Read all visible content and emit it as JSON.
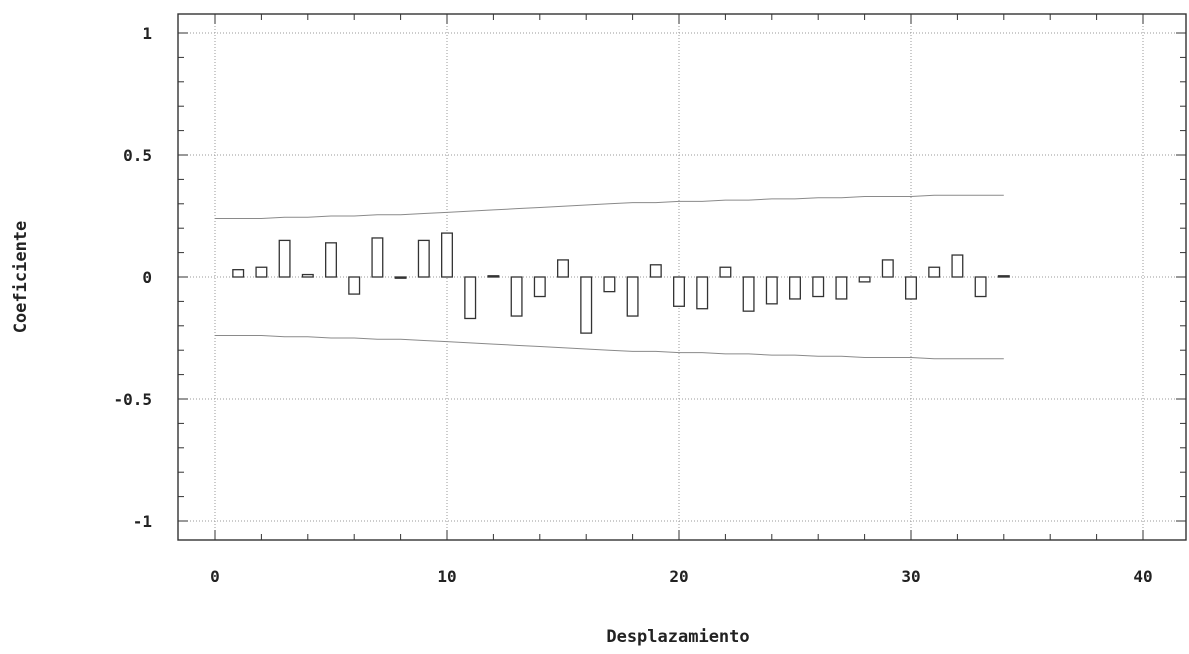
{
  "chart_data": {
    "type": "bar",
    "xlabel": "Desplazamiento",
    "ylabel": "Coeficiente",
    "xlim": [
      0,
      40
    ],
    "ylim": [
      -1,
      1
    ],
    "xticks": [
      0,
      10,
      20,
      30,
      40
    ],
    "yticks": [
      1,
      0.5,
      0,
      -0.5,
      -1
    ],
    "ytick_labels": [
      "1",
      "0.5",
      "0",
      "-0.5",
      "-1"
    ],
    "grid": true,
    "x": [
      1,
      2,
      3,
      4,
      5,
      6,
      7,
      8,
      9,
      10,
      11,
      12,
      13,
      14,
      15,
      16,
      17,
      18,
      19,
      20,
      21,
      22,
      23,
      24,
      25,
      26,
      27,
      28,
      29,
      30,
      31,
      32,
      33,
      34
    ],
    "values": [
      0.03,
      0.04,
      0.15,
      0.01,
      0.14,
      -0.07,
      0.16,
      -0.005,
      0.15,
      0.18,
      -0.17,
      0.005,
      -0.16,
      -0.08,
      0.07,
      -0.23,
      -0.06,
      -0.16,
      0.05,
      -0.12,
      -0.13,
      0.04,
      -0.14,
      -0.11,
      -0.09,
      -0.08,
      -0.09,
      -0.02,
      0.07,
      -0.09,
      0.04,
      0.09,
      -0.08,
      0.005
    ],
    "confidence_upper": [
      0.24,
      0.24,
      0.245,
      0.245,
      0.25,
      0.25,
      0.255,
      0.255,
      0.26,
      0.265,
      0.27,
      0.275,
      0.28,
      0.285,
      0.29,
      0.295,
      0.3,
      0.305,
      0.305,
      0.31,
      0.31,
      0.315,
      0.315,
      0.32,
      0.32,
      0.325,
      0.325,
      0.33,
      0.33,
      0.33,
      0.335,
      0.335,
      0.335,
      0.335
    ],
    "confidence_lower": [
      -0.24,
      -0.24,
      -0.245,
      -0.245,
      -0.25,
      -0.25,
      -0.255,
      -0.255,
      -0.26,
      -0.265,
      -0.27,
      -0.275,
      -0.28,
      -0.285,
      -0.29,
      -0.295,
      -0.3,
      -0.305,
      -0.305,
      -0.31,
      -0.31,
      -0.315,
      -0.315,
      -0.32,
      -0.32,
      -0.325,
      -0.325,
      -0.33,
      -0.33,
      -0.33,
      -0.335,
      -0.335,
      -0.335,
      -0.335
    ]
  }
}
